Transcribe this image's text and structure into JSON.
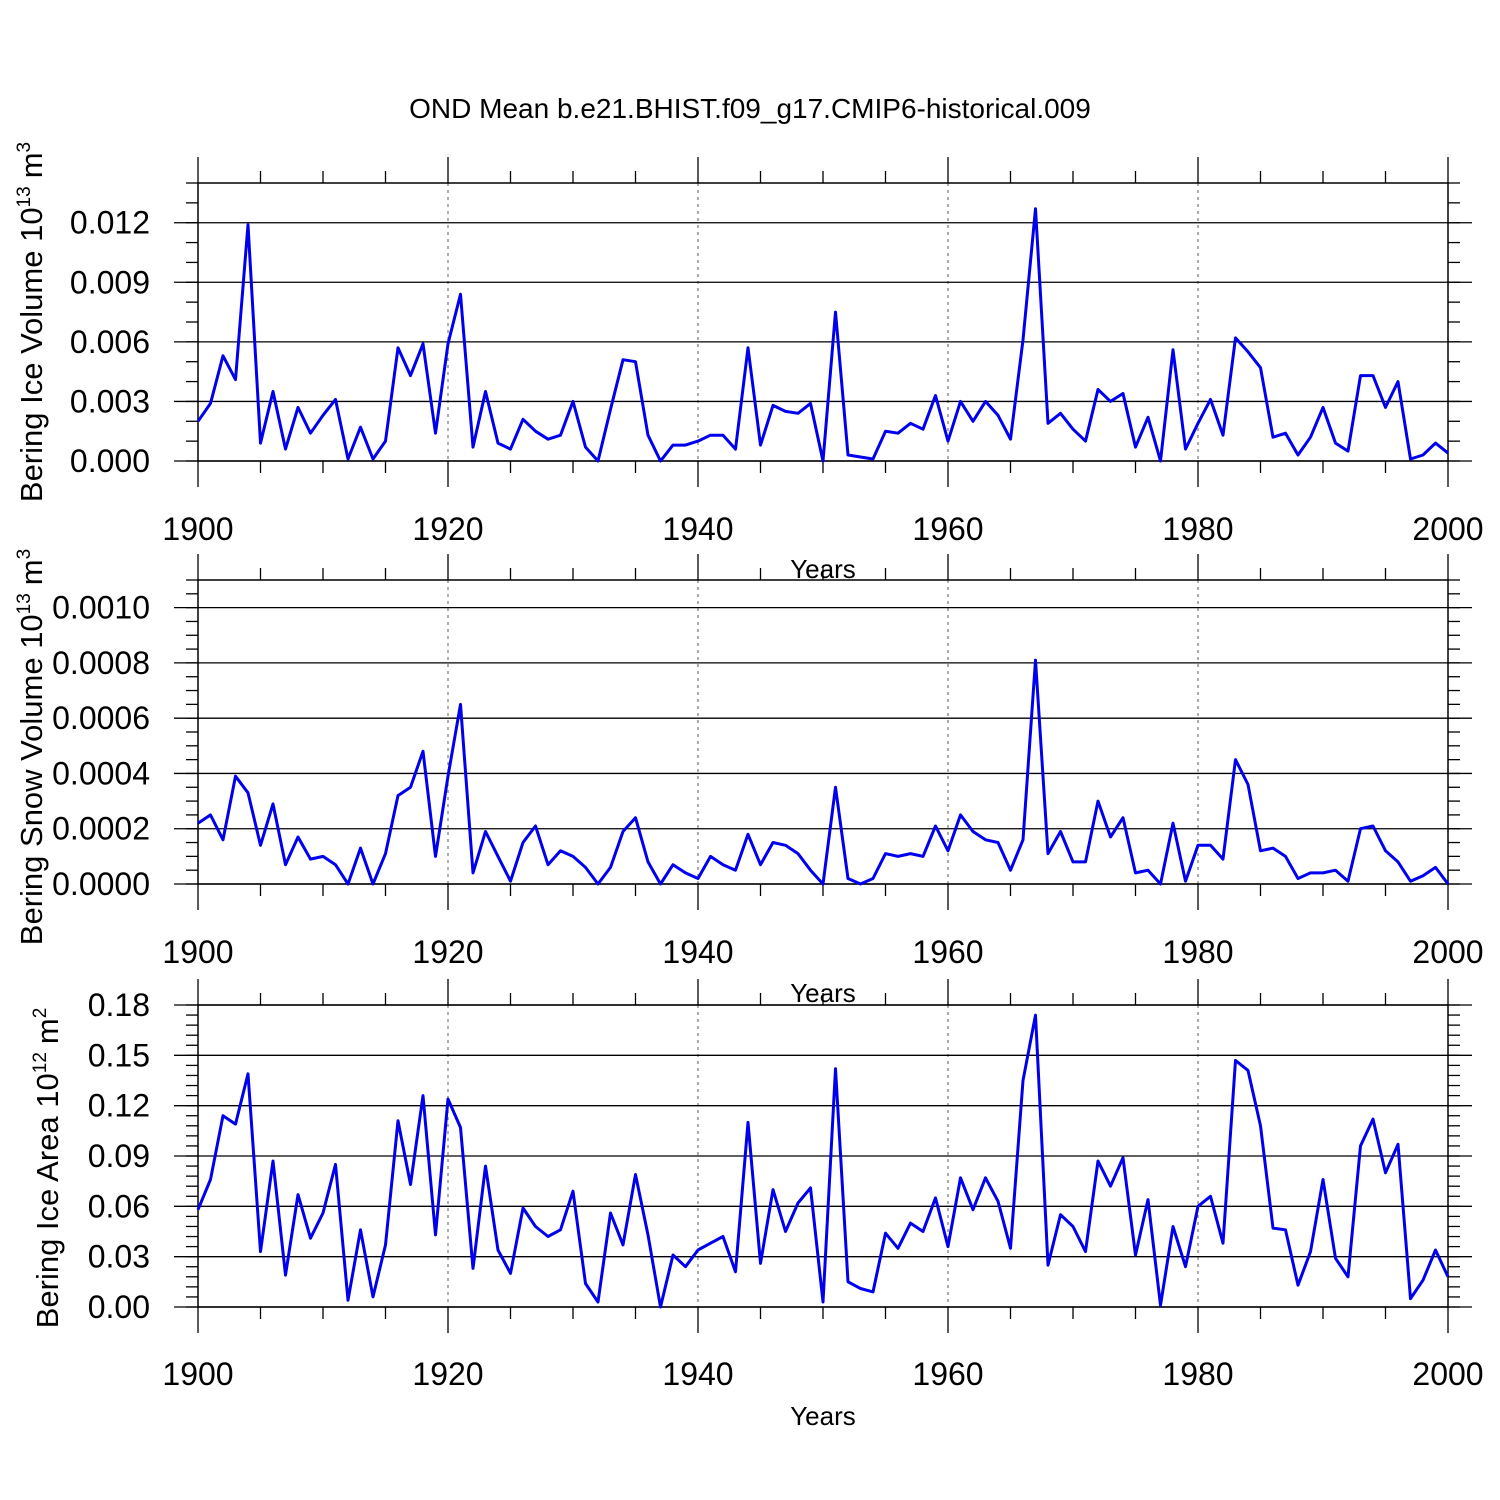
{
  "figure": {
    "title": "OND Mean b.e21.BHIST.f09_g17.CMIP6-historical.009",
    "line_color": "#0000ee"
  },
  "chart_data": [
    {
      "type": "line",
      "ylabel_main": "Bering Ice Volume 10",
      "ylabel_exp": "13",
      "ylabel_unit": "m",
      "ylabel_unit_exp": "3",
      "xlabel": "Years",
      "xlim": [
        1900,
        2000
      ],
      "ylim": [
        0,
        0.014
      ],
      "xticks": [
        1900,
        1920,
        1940,
        1960,
        1980,
        2000
      ],
      "xtick_labels": [
        "1900",
        "1920",
        "1940",
        "1960",
        "1980",
        "2000"
      ],
      "yticks": [
        0,
        0.003,
        0.006,
        0.009,
        0.012
      ],
      "ytick_labels": [
        "0.000",
        "0.003",
        "0.006",
        "0.009",
        "0.012"
      ],
      "grid_x": [
        1920,
        1940,
        1960,
        1980
      ],
      "x_start": 1900,
      "values": [
        0.002,
        0.0029,
        0.0053,
        0.0041,
        0.0119,
        0.0009,
        0.0035,
        0.0006,
        0.0027,
        0.0014,
        0.0023,
        0.0031,
        0.0001,
        0.0017,
        0.0001,
        0.001,
        0.0057,
        0.0043,
        0.0059,
        0.0014,
        0.0059,
        0.0084,
        0.0007,
        0.0035,
        0.0009,
        0.0006,
        0.0021,
        0.0015,
        0.0011,
        0.0013,
        0.003,
        0.0007,
        0.0,
        0.0026,
        0.0051,
        0.005,
        0.0013,
        0.0,
        0.0008,
        0.0008,
        0.001,
        0.0013,
        0.0013,
        0.0006,
        0.0057,
        0.0008,
        0.0028,
        0.0025,
        0.0024,
        0.0029,
        0.0,
        0.0075,
        0.0003,
        0.0002,
        0.0001,
        0.0015,
        0.0014,
        0.0019,
        0.0016,
        0.0033,
        0.001,
        0.003,
        0.002,
        0.003,
        0.0023,
        0.0011,
        0.0061,
        0.0127,
        0.0019,
        0.0024,
        0.0016,
        0.001,
        0.0036,
        0.003,
        0.0034,
        0.0007,
        0.0022,
        0.0,
        0.0056,
        0.0006,
        0.0019,
        0.0031,
        0.0013,
        0.0062,
        0.0055,
        0.0047,
        0.0012,
        0.0014,
        0.0003,
        0.0012,
        0.0027,
        0.0009,
        0.0005,
        0.0043,
        0.0043,
        0.0027,
        0.004,
        0.0001,
        0.0003,
        0.0009,
        0.0004
      ]
    },
    {
      "type": "line",
      "ylabel_main": "Bering Snow Volume 10",
      "ylabel_exp": "13",
      "ylabel_unit": "m",
      "ylabel_unit_exp": "3",
      "xlabel": "Years",
      "xlim": [
        1900,
        2000
      ],
      "ylim": [
        0,
        0.0011
      ],
      "xticks": [
        1900,
        1920,
        1940,
        1960,
        1980,
        2000
      ],
      "xtick_labels": [
        "1900",
        "1920",
        "1940",
        "1960",
        "1980",
        "2000"
      ],
      "yticks": [
        0,
        0.0002,
        0.0004,
        0.0006,
        0.0008,
        0.001
      ],
      "ytick_labels": [
        "0.0000",
        "0.0002",
        "0.0004",
        "0.0006",
        "0.0008",
        "0.0010"
      ],
      "grid_x": [
        1920,
        1940,
        1960,
        1980
      ],
      "x_start": 1900,
      "values": [
        0.00022,
        0.00025,
        0.00016,
        0.00039,
        0.00033,
        0.00014,
        0.00029,
        7e-05,
        0.00017,
        9e-05,
        0.0001,
        7e-05,
        0.0,
        0.00013,
        0.0,
        0.00011,
        0.00032,
        0.00035,
        0.00048,
        0.0001,
        0.00039,
        0.00065,
        4e-05,
        0.00019,
        0.0001,
        1e-05,
        0.00015,
        0.00021,
        7e-05,
        0.00012,
        0.0001,
        6e-05,
        0.0,
        6e-05,
        0.00019,
        0.00024,
        8e-05,
        0.0,
        7e-05,
        4e-05,
        2e-05,
        0.0001,
        7e-05,
        5e-05,
        0.00018,
        7e-05,
        0.00015,
        0.00014,
        0.00011,
        5e-05,
        0.0,
        0.00035,
        2e-05,
        0.0,
        2e-05,
        0.00011,
        0.0001,
        0.00011,
        0.0001,
        0.00021,
        0.00012,
        0.00025,
        0.00019,
        0.00016,
        0.00015,
        5e-05,
        0.00016,
        0.00081,
        0.00011,
        0.00019,
        8e-05,
        8e-05,
        0.0003,
        0.00017,
        0.00024,
        4e-05,
        5e-05,
        0.0,
        0.00022,
        1e-05,
        0.00014,
        0.00014,
        9e-05,
        0.00045,
        0.00036,
        0.00012,
        0.00013,
        0.0001,
        2e-05,
        4e-05,
        4e-05,
        5e-05,
        1e-05,
        0.0002,
        0.00021,
        0.00012,
        8e-05,
        1e-05,
        3e-05,
        6e-05,
        0.0
      ]
    },
    {
      "type": "line",
      "ylabel_main": "Bering Ice Area 10",
      "ylabel_exp": "12",
      "ylabel_unit": "m",
      "ylabel_unit_exp": "2",
      "xlabel": "Years",
      "xlim": [
        1900,
        2000
      ],
      "ylim": [
        0,
        0.18
      ],
      "xticks": [
        1900,
        1920,
        1940,
        1960,
        1980,
        2000
      ],
      "xtick_labels": [
        "1900",
        "1920",
        "1940",
        "1960",
        "1980",
        "2000"
      ],
      "yticks": [
        0,
        0.03,
        0.06,
        0.09,
        0.12,
        0.15,
        0.18
      ],
      "ytick_labels": [
        "0.00",
        "0.03",
        "0.06",
        "0.09",
        "0.12",
        "0.15",
        "0.18"
      ],
      "grid_x": [
        1920,
        1940,
        1960,
        1980
      ],
      "x_start": 1900,
      "values": [
        0.058,
        0.076,
        0.114,
        0.109,
        0.139,
        0.033,
        0.087,
        0.019,
        0.067,
        0.041,
        0.056,
        0.085,
        0.004,
        0.046,
        0.006,
        0.037,
        0.111,
        0.073,
        0.126,
        0.043,
        0.124,
        0.107,
        0.023,
        0.084,
        0.034,
        0.02,
        0.059,
        0.048,
        0.042,
        0.046,
        0.069,
        0.014,
        0.003,
        0.056,
        0.037,
        0.079,
        0.043,
        0.0,
        0.031,
        0.024,
        0.034,
        0.038,
        0.042,
        0.021,
        0.11,
        0.026,
        0.07,
        0.045,
        0.062,
        0.071,
        0.003,
        0.142,
        0.015,
        0.011,
        0.009,
        0.044,
        0.035,
        0.05,
        0.045,
        0.065,
        0.036,
        0.077,
        0.058,
        0.077,
        0.063,
        0.035,
        0.135,
        0.174,
        0.025,
        0.055,
        0.048,
        0.033,
        0.087,
        0.072,
        0.089,
        0.031,
        0.064,
        0.001,
        0.048,
        0.024,
        0.06,
        0.066,
        0.038,
        0.147,
        0.141,
        0.108,
        0.047,
        0.046,
        0.013,
        0.033,
        0.076,
        0.029,
        0.018,
        0.096,
        0.112,
        0.08,
        0.097,
        0.005,
        0.016,
        0.034,
        0.018
      ]
    }
  ]
}
